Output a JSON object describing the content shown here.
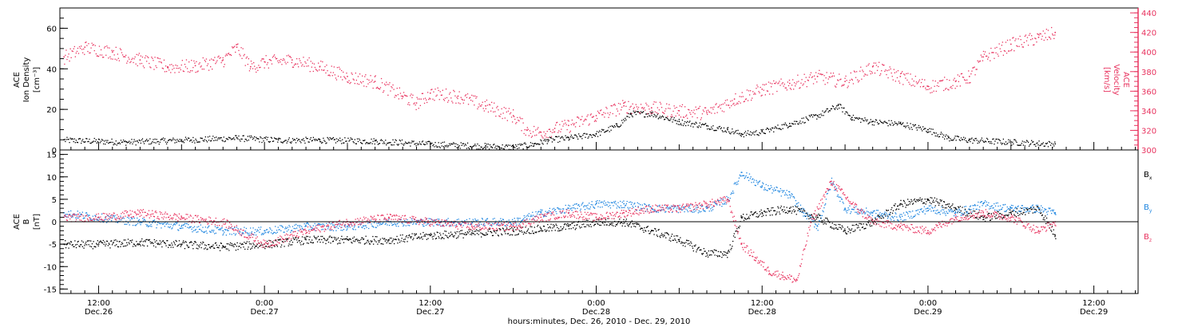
{
  "colors": {
    "black": "#000000",
    "pink": "#e8335f",
    "blue": "#1f86e0"
  },
  "time_axis": {
    "tick_labels": [
      {
        "time": "12:00",
        "date": "Dec.26",
        "t_hours": 12
      },
      {
        "time": "0:00",
        "date": "Dec.27",
        "t_hours": 24
      },
      {
        "time": "12:00",
        "date": "Dec.27",
        "t_hours": 36
      },
      {
        "time": "0:00",
        "date": "Dec.28",
        "t_hours": 48
      },
      {
        "time": "12:00",
        "date": "Dec.28",
        "t_hours": 60
      },
      {
        "time": "0:00",
        "date": "Dec.29",
        "t_hours": 72
      },
      {
        "time": "12:00",
        "date": "Dec.29",
        "t_hours": 84
      }
    ],
    "xlabel": "hours:minutes, Dec. 26, 2010 - Dec. 29, 2010",
    "range_hours": [
      9.2,
      87.2
    ]
  },
  "chart_data": [
    {
      "type": "scatter",
      "ylabel": [
        "ACE",
        "Ion Density",
        "[cm⁻³]"
      ],
      "ylabel_right": [
        "ACE",
        "Velocity",
        "[km/s]"
      ],
      "y_range": [
        0,
        70
      ],
      "y_ticks": [
        0,
        20,
        40,
        60
      ],
      "y_right_range": [
        300,
        445
      ],
      "y_right_ticks": [
        300,
        320,
        340,
        360,
        380,
        400,
        420,
        440
      ],
      "series": [
        {
          "name": "",
          "color": "#000000",
          "axis": "left",
          "x": [
            9.5,
            14,
            18,
            22,
            25,
            28,
            32,
            36,
            40,
            42,
            43.5,
            44.5,
            46,
            48,
            49.5,
            50.5,
            52,
            54,
            56,
            57.5,
            58.5,
            60,
            62,
            64,
            65.5,
            66.5,
            68,
            70,
            72,
            73.5,
            75,
            78,
            81.2
          ],
          "y": [
            5,
            4,
            5,
            6,
            5,
            5,
            4.5,
            3,
            2,
            1.5,
            3,
            5,
            6,
            8,
            12,
            18,
            18,
            14,
            12,
            10,
            8,
            9,
            13,
            17,
            22,
            16,
            14,
            13,
            10,
            6,
            5,
            4,
            3
          ]
        },
        {
          "name": "",
          "color": "#e8335f",
          "axis": "right",
          "x": [
            9.5,
            11,
            13,
            15,
            17,
            19,
            21,
            22,
            23,
            24,
            26,
            28,
            30,
            32,
            34,
            35,
            36,
            38,
            40,
            42,
            43,
            44,
            45,
            46,
            48,
            50,
            52,
            54,
            56,
            58,
            60,
            62,
            64,
            66,
            68,
            70,
            72,
            74,
            75,
            76,
            78,
            80,
            81.2
          ],
          "y": [
            395,
            405,
            400,
            392,
            385,
            386,
            392,
            405,
            385,
            390,
            392,
            385,
            375,
            370,
            355,
            348,
            358,
            355,
            345,
            335,
            320,
            318,
            322,
            325,
            335,
            345,
            343,
            340,
            338,
            352,
            362,
            368,
            375,
            370,
            385,
            375,
            365,
            370,
            375,
            395,
            408,
            415,
            420
          ]
        }
      ]
    },
    {
      "type": "scatter",
      "ylabel": [
        "ACE",
        "B",
        "[nT]"
      ],
      "y_range": [
        -16,
        16
      ],
      "y_ticks": [
        -15,
        -10,
        -5,
        0,
        5,
        10,
        15
      ],
      "zero_line": true,
      "series": [
        {
          "name": "Bx",
          "color": "#000000",
          "x": [
            9.5,
            12,
            15,
            18,
            21,
            24,
            27,
            30,
            33,
            36,
            39,
            42,
            44,
            46,
            48,
            50,
            52,
            54,
            56,
            57.5,
            58.5,
            60,
            62,
            64,
            66,
            68,
            70,
            72,
            74,
            76,
            78,
            80,
            81.2
          ],
          "y": [
            -5,
            -5,
            -4.5,
            -5,
            -5.5,
            -5,
            -4,
            -4,
            -4,
            -3,
            -2.5,
            -2,
            -1.5,
            -1,
            0,
            0,
            -2,
            -4,
            -7,
            -7,
            1,
            2,
            3,
            1,
            -2,
            0,
            4,
            5,
            3,
            1,
            2,
            3,
            -3
          ]
        },
        {
          "name": "By",
          "color": "#1f86e0",
          "x": [
            9.5,
            12,
            15,
            18,
            21,
            24,
            27,
            30,
            33,
            36,
            39,
            42,
            44,
            46,
            48,
            50,
            52,
            54,
            56,
            57.5,
            58.5,
            60,
            62,
            63,
            64,
            65,
            66,
            68,
            70,
            72,
            74,
            76,
            78,
            80,
            81.2
          ],
          "y": [
            2,
            1,
            0,
            -1,
            -2,
            -2,
            -1,
            -1,
            0,
            0,
            0,
            0,
            2,
            3,
            4,
            4,
            3,
            3,
            3,
            5,
            11,
            8,
            6,
            2,
            -1,
            9,
            3,
            2,
            1,
            3,
            2,
            4,
            3,
            3,
            2
          ]
        },
        {
          "name": "Bz",
          "color": "#e8335f",
          "x": [
            9.5,
            12,
            15,
            18,
            21,
            24,
            27,
            30,
            33,
            36,
            39,
            42,
            44,
            46,
            48,
            50,
            52,
            54,
            56,
            57.5,
            58.5,
            59.5,
            60.5,
            61.5,
            62.5,
            63.5,
            65,
            66.5,
            68,
            70,
            72,
            74,
            76,
            78,
            80,
            81.2
          ],
          "y": [
            1,
            1,
            2,
            1,
            0,
            -5,
            -2,
            0,
            1,
            0,
            -1,
            -1,
            1,
            2,
            1,
            2,
            3,
            3,
            4,
            5,
            -5,
            -8,
            -11,
            -12,
            -13,
            0,
            9,
            4,
            0,
            -1,
            -2,
            1,
            2,
            1,
            -2,
            0
          ]
        }
      ]
    }
  ],
  "legend": [
    {
      "base": "B",
      "sub": "x",
      "color": "#000000"
    },
    {
      "base": "B",
      "sub": "y",
      "color": "#1f86e0"
    },
    {
      "base": "B",
      "sub": "z",
      "color": "#e8335f"
    }
  ]
}
